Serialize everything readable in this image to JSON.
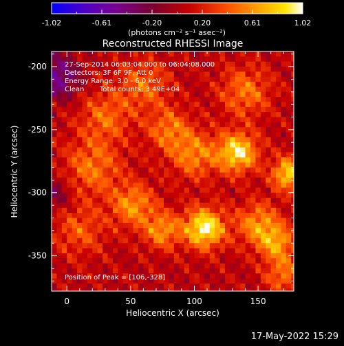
{
  "chart_data": {
    "type": "heatmap",
    "title": "Reconstructed RHESSI Image",
    "xlabel": "Heliocentric X (arcsec)",
    "ylabel": "Heliocentric Y (arcsec)",
    "xlim": [
      -12,
      178
    ],
    "ylim": [
      -378,
      -188
    ],
    "x_ticks": [
      0,
      50,
      100,
      150
    ],
    "y_ticks": [
      -200,
      -250,
      -300,
      -350
    ],
    "colorbar": {
      "min": -1.02,
      "max": 1.02,
      "ticks": [
        "-1.02",
        "-0.61",
        "-0.20",
        "0.20",
        "0.61",
        "1.02"
      ],
      "unit_label": "(photons cm⁻² s⁻¹ asec⁻²)",
      "colormap": [
        "#0000ff",
        "#4b00c8",
        "#7a0096",
        "#7a0030",
        "#c80000",
        "#ff5000",
        "#ffa000",
        "#ffe600",
        "#ffffff"
      ]
    },
    "annotations": {
      "time_range": "27-Sep-2014 06:03:04.000 to 06:04:08.000",
      "detectors": "Detectors: 3F 6F 9F, Att 0",
      "energy_range": "Energy Range: 3.0 - 6.0 keV",
      "algorithm": "Clean",
      "total_counts": "Total counts: 3.49E+04",
      "peak_position": "Position of Peak = [106,-328]"
    },
    "peak": {
      "x": 106,
      "y": -328
    },
    "sources": [
      {
        "x": 134,
        "y": -268,
        "amp": 0.85,
        "sigma": 11
      },
      {
        "x": 174,
        "y": -285,
        "amp": 0.8,
        "sigma": 9
      },
      {
        "x": 108,
        "y": -328,
        "amp": 0.95,
        "sigma": 11
      },
      {
        "x": 75,
        "y": -330,
        "amp": 0.55,
        "sigma": 10
      },
      {
        "x": 52,
        "y": -310,
        "amp": 0.55,
        "sigma": 12
      },
      {
        "x": 150,
        "y": -325,
        "amp": 0.55,
        "sigma": 12
      },
      {
        "x": 165,
        "y": -340,
        "amp": 0.55,
        "sigma": 10
      },
      {
        "x": 80,
        "y": -250,
        "amp": 0.45,
        "sigma": 12
      },
      {
        "x": 100,
        "y": -270,
        "amp": 0.5,
        "sigma": 13
      },
      {
        "x": 20,
        "y": -280,
        "amp": 0.45,
        "sigma": 16
      },
      {
        "x": 10,
        "y": -330,
        "amp": 0.35,
        "sigma": 14
      },
      {
        "x": 140,
        "y": -220,
        "amp": 0.45,
        "sigma": 14
      },
      {
        "x": 60,
        "y": -215,
        "amp": 0.4,
        "sigma": 14
      },
      {
        "x": 30,
        "y": -240,
        "amp": 0.4,
        "sigma": 14
      },
      {
        "x": 170,
        "y": -365,
        "amp": 0.45,
        "sigma": 10
      },
      {
        "x": -8,
        "y": -208,
        "amp": -0.55,
        "sigma": 12
      },
      {
        "x": -10,
        "y": -300,
        "amp": -0.3,
        "sigma": 10
      }
    ]
  },
  "timestamp": "17-May-2022 15:29"
}
